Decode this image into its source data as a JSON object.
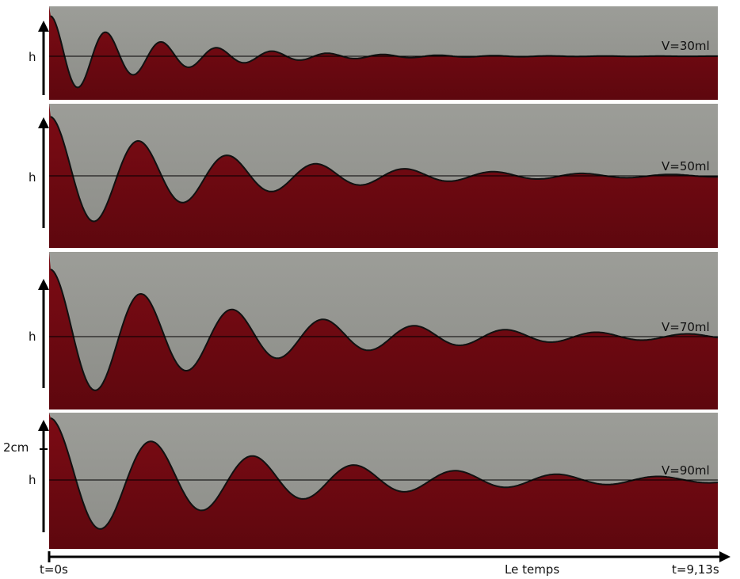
{
  "panels": [
    {
      "volume_label": "V=30ml",
      "height_label": "h",
      "amplitude": 0.85,
      "damping_time_fraction": 0.16
    },
    {
      "volume_label": "V=50ml",
      "height_label": "h",
      "amplitude": 0.85,
      "damping_time_fraction": 0.25
    },
    {
      "volume_label": "V=70ml",
      "height_label": "h",
      "amplitude": 0.85,
      "damping_time_fraction": 0.3
    },
    {
      "volume_label": "V=90ml",
      "height_label": "h",
      "amplitude": 0.85,
      "damping_time_fraction": 0.32
    }
  ],
  "scale_label": "2cm",
  "time_axis": {
    "start_label": "t=0s",
    "middle_label": "Le temps",
    "end_label": "t=9,13s"
  },
  "colors": {
    "liquid": "#7a0a12",
    "liquid_dark": "#5a060c",
    "air": "#93948f",
    "meniscus_highlight": "#c9c7c2",
    "line": "#000000"
  }
}
